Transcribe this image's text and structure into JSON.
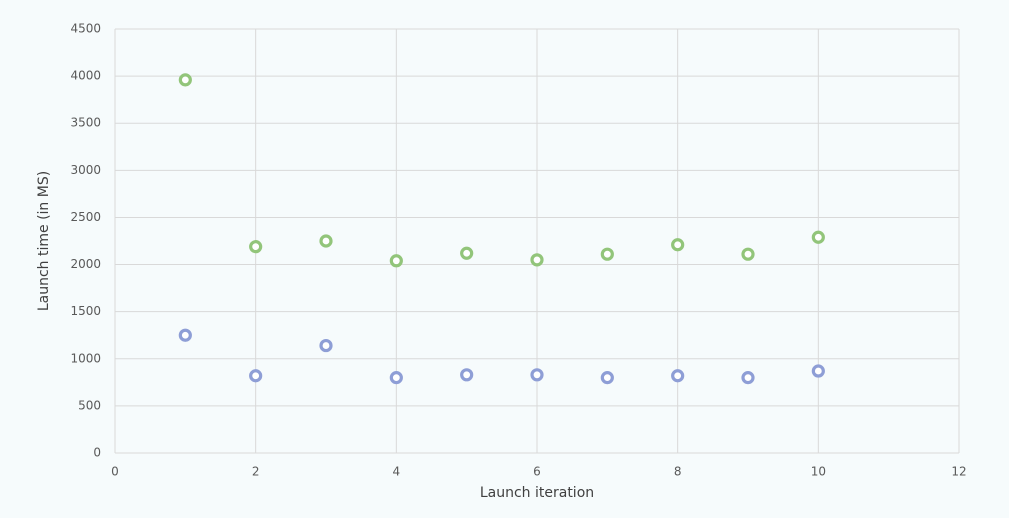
{
  "chart_data": {
    "type": "scatter",
    "x_label": "Launch iteration",
    "y_label": "Launch time (in MS)",
    "x": [
      1,
      2,
      3,
      4,
      5,
      6,
      7,
      8,
      9,
      10
    ],
    "series": [
      {
        "color": "#92c57a",
        "values": [
          3960,
          2190,
          2250,
          2040,
          2120,
          2050,
          2110,
          2210,
          2110,
          2290
        ]
      },
      {
        "color": "#8e9ed6",
        "values": [
          1250,
          820,
          1140,
          800,
          830,
          830,
          800,
          820,
          800,
          870
        ]
      }
    ],
    "xlim": [
      0,
      12
    ],
    "xticks": [
      0,
      2,
      4,
      6,
      8,
      10,
      12
    ],
    "ylim": [
      0,
      4500
    ],
    "yticks": [
      0,
      500,
      1000,
      1500,
      2000,
      2500,
      3000,
      3500,
      4000,
      4500
    ],
    "grid": true
  }
}
